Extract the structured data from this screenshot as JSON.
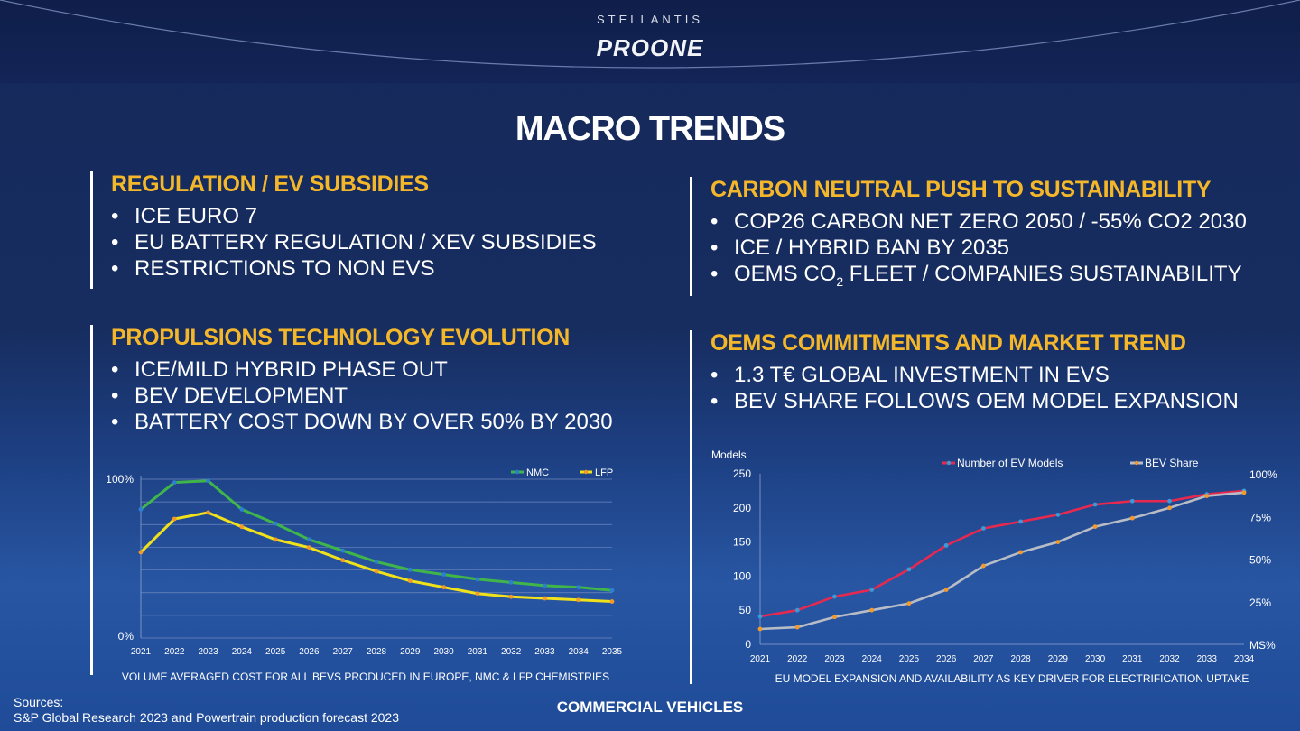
{
  "brand": {
    "company": "STELLANTIS",
    "product": "PROONE"
  },
  "title": "MACRO TRENDS",
  "sections": {
    "regulation": {
      "heading": "REGULATION / EV SUBSIDIES",
      "items": [
        "ICE EURO 7",
        "EU BATTERY REGULATION / XEV SUBSIDIES",
        "RESTRICTIONS TO NON EVS"
      ]
    },
    "carbon": {
      "heading": "CARBON NEUTRAL PUSH TO SUSTAINABILITY",
      "items": [
        "COP26 CARBON NET ZERO 2050 / -55% CO2 2030",
        "ICE / HYBRID BAN BY 2035",
        "OEMS CO",
        "2",
        " FLEET / COMPANIES SUSTAINABILITY"
      ]
    },
    "propulsion": {
      "heading": "PROPULSIONS TECHNOLOGY EVOLUTION",
      "items": [
        "ICE/MILD HYBRID PHASE OUT",
        "BEV DEVELOPMENT",
        "BATTERY COST DOWN BY OVER 50% BY 2030"
      ]
    },
    "oems": {
      "heading": "OEMS COMMITMENTS AND MARKET TREND",
      "items": [
        "1.3 T€ GLOBAL INVESTMENT IN EVS",
        "BEV SHARE FOLLOWS OEM MODEL EXPANSION"
      ]
    }
  },
  "chart_data": [
    {
      "type": "line",
      "title": "",
      "caption": "VOLUME AVERAGED COST FOR ALL BEVS PRODUCED IN EUROPE, NMC & LFP CHEMISTRIES",
      "x": [
        2021,
        2022,
        2023,
        2024,
        2025,
        2026,
        2027,
        2028,
        2029,
        2030,
        2031,
        2032,
        2033,
        2034,
        2035
      ],
      "y_tick_labels": [
        "100%",
        "0%"
      ],
      "ylim": [
        0,
        100
      ],
      "legend_position": "top-right",
      "grid": true,
      "series": [
        {
          "name": "NMC",
          "color": "#3fb54a",
          "marker": "#2d7fd0",
          "values": [
            81,
            98,
            99,
            81,
            72,
            62,
            55,
            48,
            43,
            40,
            37,
            35,
            33,
            32,
            30
          ]
        },
        {
          "name": "LFP",
          "color": "#f1e11a",
          "marker": "#f39a2b",
          "values": [
            54,
            75,
            79,
            70,
            62,
            57,
            49,
            42,
            36,
            32,
            28,
            26,
            25,
            24,
            23
          ]
        }
      ]
    },
    {
      "type": "line",
      "title": "",
      "caption": "EU MODEL EXPANSION AND AVAILABILITY AS KEY DRIVER FOR ELECTRIFICATION UPTAKE",
      "x": [
        2021,
        2022,
        2023,
        2024,
        2025,
        2026,
        2027,
        2028,
        2029,
        2030,
        2031,
        2032,
        2033,
        2034
      ],
      "ylabel": "Models",
      "ylim": [
        0,
        250
      ],
      "y_ticks": [
        0,
        50,
        100,
        150,
        200,
        250
      ],
      "y2_ticks": [
        "MS%",
        "25%",
        "50%",
        "75%",
        "100%"
      ],
      "y2lim": [
        0,
        100
      ],
      "legend_position": "top",
      "grid": false,
      "series": [
        {
          "name": "Number of EV Models",
          "axis": "left",
          "color": "#e8294f",
          "marker": "#3a9ad9",
          "values": [
            41,
            50,
            70,
            80,
            110,
            145,
            170,
            180,
            190,
            205,
            210,
            210,
            220,
            225
          ]
        },
        {
          "name": "BEV Share",
          "axis": "right",
          "color": "#b8bcc6",
          "marker": "#f39a2b",
          "values": [
            9,
            10,
            16,
            20,
            24,
            32,
            46,
            54,
            60,
            69,
            74,
            80,
            87,
            89
          ]
        }
      ]
    }
  ],
  "footer": {
    "sources_label": "Sources:",
    "sources_text": "S&P Global Research 2023 and Powertrain production forecast 2023",
    "center": "COMMERCIAL VEHICLES"
  }
}
